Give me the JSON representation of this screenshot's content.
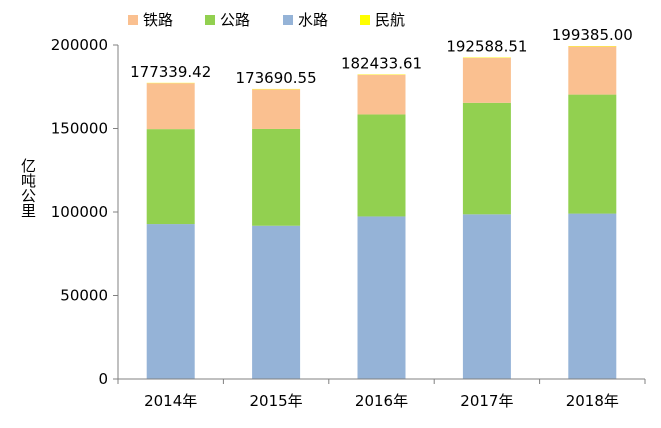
{
  "chart_data": {
    "type": "bar",
    "stacked": true,
    "categories": [
      "2014年",
      "2015年",
      "2016年",
      "2017年",
      "2018年"
    ],
    "series": [
      {
        "name": "水路",
        "color": "#95b3d7",
        "values": [
          92775,
          91772,
          97339,
          98611,
          99053
        ]
      },
      {
        "name": "公路",
        "color": "#92d050",
        "values": [
          56847,
          57956,
          61080,
          66772,
          71249
        ]
      },
      {
        "name": "铁路",
        "color": "#fac090",
        "values": [
          27530,
          23754,
          23792,
          26962,
          28821
        ]
      },
      {
        "name": "民航",
        "color": "#ffff00",
        "values": [
          187.42,
          208.55,
          222.61,
          243.51,
          262.0
        ]
      }
    ],
    "totals": [
      "177339.42",
      "173690.55",
      "182433.61",
      "192588.51",
      "199385.00"
    ],
    "total_values": [
      177339.42,
      173690.55,
      182433.61,
      192588.51,
      199385.0
    ],
    "ylabel": "亿吨公里",
    "ylim": [
      0,
      200000
    ],
    "yticks": [
      "0",
      "50000",
      "100000",
      "150000",
      "200000"
    ],
    "ytick_values": [
      0,
      50000,
      100000,
      150000,
      200000
    ],
    "legend_order": [
      "铁路",
      "公路",
      "水路",
      "民航"
    ],
    "legend_position": "top",
    "grid": false
  }
}
